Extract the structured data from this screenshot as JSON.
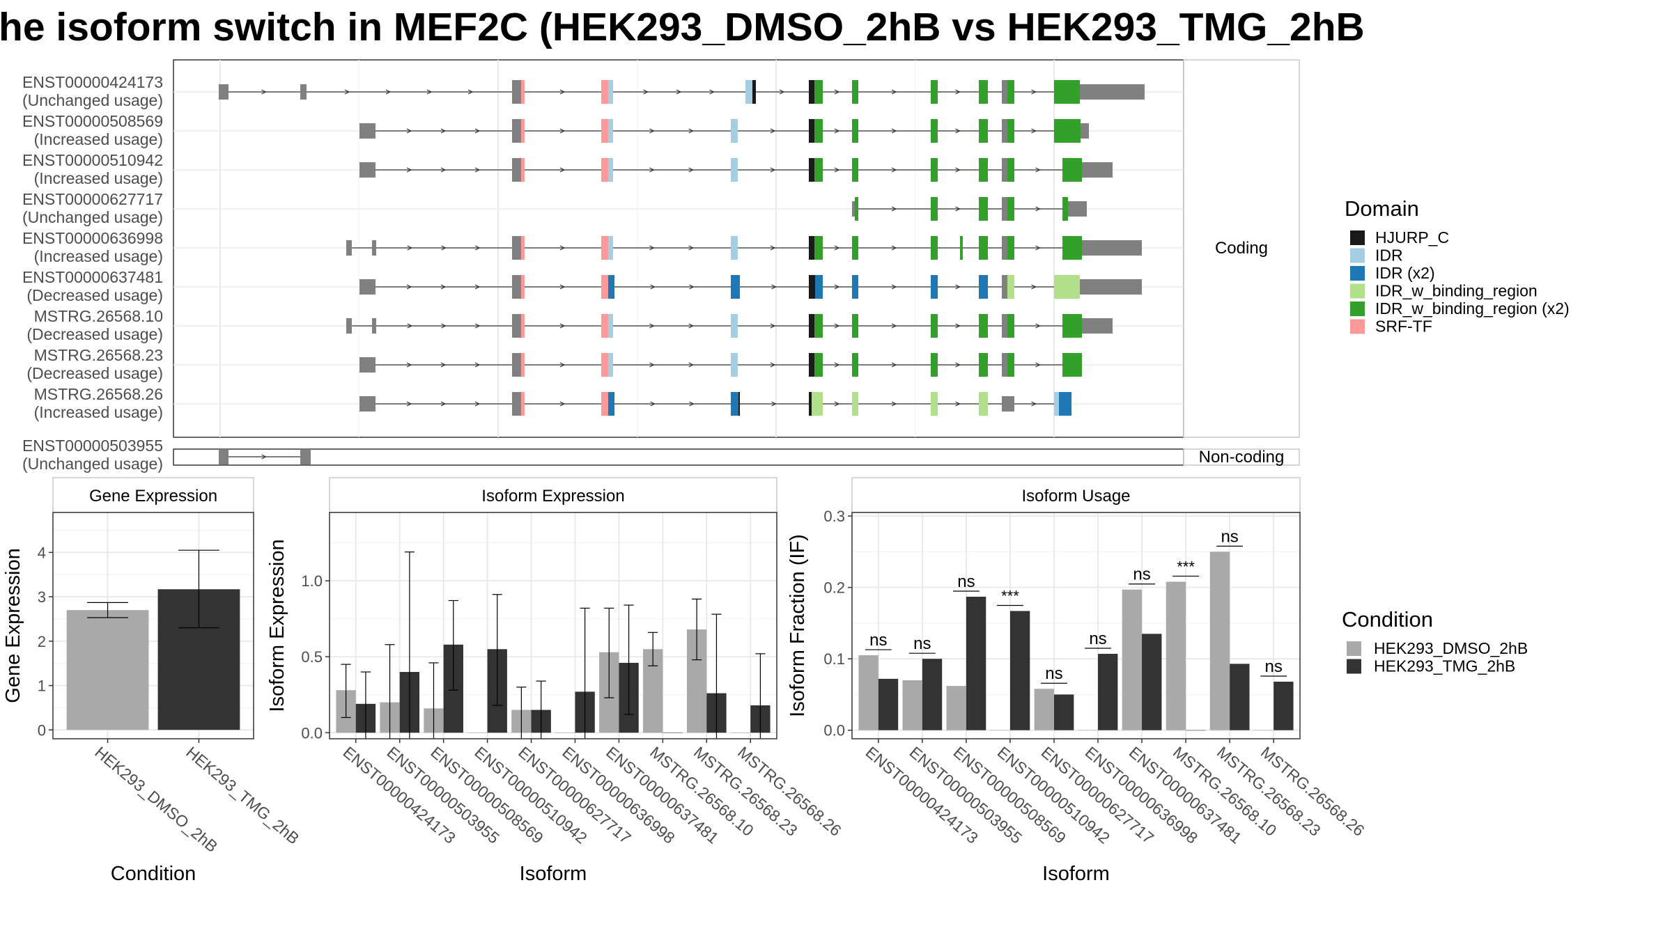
{
  "title": "he isoform switch in MEF2C (HEK293_DMSO_2hB vs HEK293_TMG_2hB",
  "structure_panel": {
    "coding_label": "Coding",
    "noncoding_label": "Non-coding",
    "coding_isoforms": [
      {
        "id": "ENST00000424173",
        "status": "(Unchanged usage)"
      },
      {
        "id": "ENST00000508569",
        "status": "(Increased usage)"
      },
      {
        "id": "ENST00000510942",
        "status": "(Increased usage)"
      },
      {
        "id": "ENST00000627717",
        "status": "(Unchanged usage)"
      },
      {
        "id": "ENST00000636998",
        "status": "(Increased usage)"
      },
      {
        "id": "ENST00000637481",
        "status": "(Decreased usage)"
      },
      {
        "id": "MSTRG.26568.10",
        "status": "(Decreased usage)"
      },
      {
        "id": "MSTRG.26568.23",
        "status": "(Decreased usage)"
      },
      {
        "id": "MSTRG.26568.26",
        "status": "(Increased usage)"
      }
    ],
    "noncoding_isoforms": [
      {
        "id": "ENST00000503955",
        "status": "(Unchanged usage)"
      }
    ]
  },
  "domain_legend": {
    "title": "Domain",
    "items": [
      {
        "name": "HJURP_C",
        "color": "#1a1a1a"
      },
      {
        "name": "IDR",
        "color": "#a6cee3"
      },
      {
        "name": "IDR (x2)",
        "color": "#1f78b4"
      },
      {
        "name": "IDR_w_binding_region",
        "color": "#b2df8a"
      },
      {
        "name": "IDR_w_binding_region (x2)",
        "color": "#33a02c"
      },
      {
        "name": "SRF-TF",
        "color": "#fb9a99"
      }
    ]
  },
  "condition_legend": {
    "title": "Condition",
    "items": [
      {
        "name": "HEK293_DMSO_2hB",
        "color": "#a9a9a9"
      },
      {
        "name": "HEK293_TMG_2hB",
        "color": "#333333"
      }
    ]
  },
  "chart_data": [
    {
      "type": "bar",
      "title": "Gene Expression",
      "xlabel": "Condition",
      "ylabel": "Gene Expression",
      "ylim": [
        -0.2,
        4.9
      ],
      "yticks": [
        0,
        1,
        2,
        3,
        4
      ],
      "categories": [
        "HEK293_DMSO_2hB",
        "HEK293_TMG_2hB"
      ],
      "values": [
        2.7,
        3.17
      ],
      "error_low": [
        2.53,
        2.3
      ],
      "error_high": [
        2.87,
        4.05
      ]
    },
    {
      "type": "bar",
      "title": "Isoform Expression",
      "xlabel": "Isoform",
      "ylabel": "Isoform Expression",
      "ylim": [
        -0.04,
        1.45
      ],
      "yticks": [
        0.0,
        0.5,
        1.0
      ],
      "ytick_labels": [
        "0.0",
        "0.5",
        "1.0"
      ],
      "categories": [
        "ENST00000424173",
        "ENST00000503955",
        "ENST00000508569",
        "ENST00000510942",
        "ENST00000627717",
        "ENST00000636998",
        "ENST00000637481",
        "MSTRG.26568.10",
        "MSTRG.26568.23",
        "MSTRG.26568.26"
      ],
      "series": [
        {
          "name": "HEK293_DMSO_2hB",
          "values": [
            0.28,
            0.2,
            0.16,
            0.0,
            0.15,
            0.0,
            0.53,
            0.55,
            0.68,
            0.0
          ],
          "error_low": [
            0.1,
            null,
            null,
            null,
            null,
            null,
            0.23,
            0.44,
            0.48,
            null
          ],
          "error_high": [
            0.45,
            0.58,
            0.46,
            null,
            0.3,
            null,
            0.82,
            0.66,
            0.88,
            null
          ]
        },
        {
          "name": "HEK293_TMG_2hB",
          "values": [
            0.19,
            0.4,
            0.58,
            0.55,
            0.15,
            0.27,
            0.46,
            0.0,
            0.26,
            0.18
          ],
          "error_low": [
            null,
            null,
            0.28,
            0.18,
            null,
            null,
            0.12,
            null,
            null,
            null
          ],
          "error_high": [
            0.4,
            1.19,
            0.87,
            0.91,
            0.34,
            0.82,
            0.84,
            null,
            0.78,
            0.52
          ]
        }
      ]
    },
    {
      "type": "bar",
      "title": "Isoform Usage",
      "xlabel": "Isoform",
      "ylabel": "Isoform Fraction (IF)",
      "ylim": [
        -0.012,
        0.305
      ],
      "yticks": [
        0.0,
        0.1,
        0.2,
        0.3
      ],
      "ytick_labels": [
        "0.0",
        "0.1",
        "0.2",
        "0.3"
      ],
      "categories": [
        "ENST00000424173",
        "ENST00000503955",
        "ENST00000508569",
        "ENST00000510942",
        "ENST00000627717",
        "ENST00000636998",
        "ENST00000637481",
        "MSTRG.26568.10",
        "MSTRG.26568.23",
        "MSTRG.26568.26"
      ],
      "series": [
        {
          "name": "HEK293_DMSO_2hB",
          "values": [
            0.105,
            0.07,
            0.062,
            0.0,
            0.058,
            0.0,
            0.197,
            0.208,
            0.25,
            0.0
          ]
        },
        {
          "name": "HEK293_TMG_2hB",
          "values": [
            0.072,
            0.1,
            0.187,
            0.167,
            0.05,
            0.107,
            0.135,
            0.0,
            0.093,
            0.068
          ]
        }
      ],
      "annotations": [
        "ns",
        "ns",
        "ns",
        "***",
        "ns",
        "ns",
        "ns",
        "***",
        "ns",
        "ns"
      ]
    }
  ]
}
